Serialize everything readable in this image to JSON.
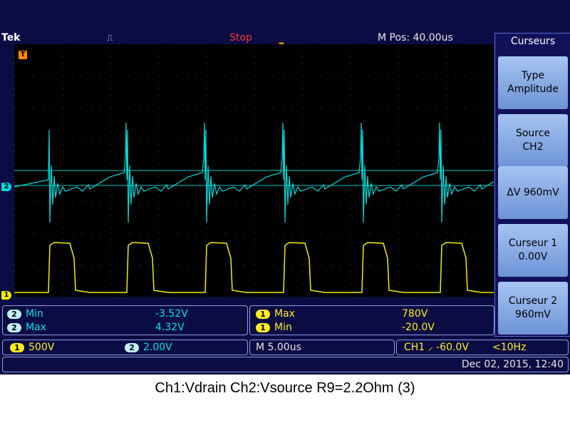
{
  "topbar": {
    "brand": "Tek",
    "trigger_icon": "⎍",
    "run_state": "Stop",
    "position": "M Pos: 40.00us"
  },
  "markers": {
    "ch2": "2",
    "ch1": "1",
    "trigger": "T"
  },
  "menu": {
    "title": "Curseurs",
    "buttons": [
      {
        "line1": "Type",
        "line2": "Amplitude"
      },
      {
        "line1": "Source",
        "line2": "CH2"
      },
      {
        "line1": "ΔV 960mV",
        "line2": ""
      },
      {
        "line1": "Curseur 1",
        "line2": "0.00V"
      },
      {
        "line1": "Curseur 2",
        "line2": "960mV"
      }
    ]
  },
  "measurements": {
    "left": [
      {
        "ch": "2",
        "label": "Min",
        "value": "-3.52V"
      },
      {
        "ch": "2",
        "label": "Max",
        "value": "4.32V"
      }
    ],
    "right": [
      {
        "ch": "1",
        "label": "Max",
        "value": "780V"
      },
      {
        "ch": "1",
        "label": "Min",
        "value": "-20.0V"
      }
    ]
  },
  "scale": {
    "ch1_badge": "1",
    "ch1_scale": "500V",
    "ch2_badge": "2",
    "ch2_scale": "2.00V",
    "timebase": "M 5.00us",
    "trigger": "CH1 ⸝ -60.0V",
    "trigger_freq": "<10Hz"
  },
  "datetime": "Dec 02, 2015, 12:40",
  "caption": "Ch1:Vdrain Ch2:Vsource R9=2.2Ohm (3)",
  "colors": {
    "ch1": "#f0f000",
    "ch2": "#00dddd",
    "grid": "#555555"
  }
}
